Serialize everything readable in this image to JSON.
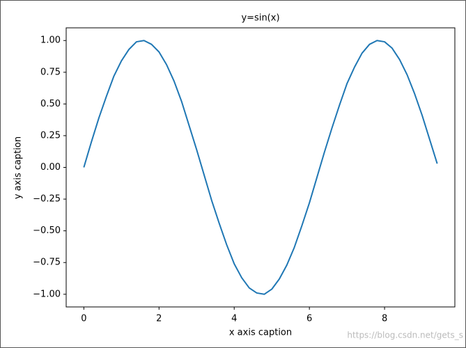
{
  "chart_data": {
    "type": "line",
    "title": "y=sin(x)",
    "x_label": "x axis caption",
    "y_label": "y axis caption",
    "x": [
      0,
      0.2,
      0.4,
      0.6,
      0.8,
      1.0,
      1.2,
      1.4,
      1.6,
      1.8,
      2.0,
      2.2,
      2.4,
      2.6,
      2.8,
      3.0,
      3.2,
      3.4,
      3.6,
      3.8,
      4.0,
      4.2,
      4.4,
      4.6,
      4.8,
      5.0,
      5.2,
      5.4,
      5.6,
      5.8,
      6.0,
      6.2,
      6.4,
      6.6,
      6.8,
      7.0,
      7.2,
      7.4,
      7.6,
      7.8,
      8.0,
      8.2,
      8.4,
      8.6,
      8.8,
      9.0,
      9.2,
      9.4
    ],
    "series": [
      {
        "color": "#1f77b4",
        "values": [
          0.0,
          0.2,
          0.39,
          0.56,
          0.72,
          0.84,
          0.93,
          0.99,
          1.0,
          0.97,
          0.91,
          0.81,
          0.68,
          0.52,
          0.33,
          0.14,
          -0.06,
          -0.26,
          -0.44,
          -0.61,
          -0.76,
          -0.87,
          -0.95,
          -0.99,
          -1.0,
          -0.96,
          -0.88,
          -0.77,
          -0.63,
          -0.46,
          -0.28,
          -0.08,
          0.12,
          0.31,
          0.49,
          0.66,
          0.79,
          0.9,
          0.97,
          1.0,
          0.99,
          0.94,
          0.85,
          0.73,
          0.58,
          0.41,
          0.22,
          0.03
        ]
      }
    ],
    "xlim": [
      -0.47,
      9.87
    ],
    "ylim": [
      -1.1,
      1.1
    ],
    "xticks": [
      0,
      2,
      4,
      6,
      8
    ],
    "yticks": [
      {
        "value": -1,
        "label": "−1.00"
      },
      {
        "value": -0.75,
        "label": "−0.75"
      },
      {
        "value": -0.5,
        "label": "−0.50"
      },
      {
        "value": -0.25,
        "label": "−0.25"
      },
      {
        "value": 0,
        "label": "0.00"
      },
      {
        "value": 0.25,
        "label": "0.25"
      },
      {
        "value": 0.5,
        "label": "0.50"
      },
      {
        "value": 0.75,
        "label": "0.75"
      },
      {
        "value": 1,
        "label": "1.00"
      }
    ],
    "watermark": "https://blog.csdn.net/gets_s"
  }
}
